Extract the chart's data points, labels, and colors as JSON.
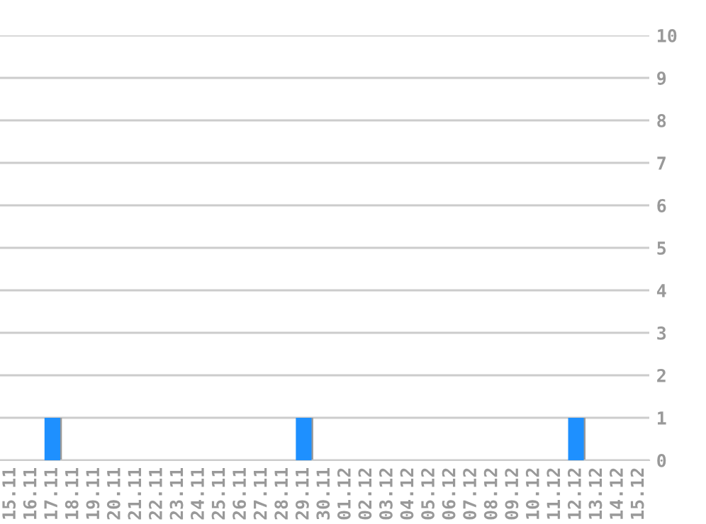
{
  "chart_data": {
    "type": "bar",
    "categories": [
      "15.11",
      "16.11",
      "17.11",
      "18.11",
      "19.11",
      "20.11",
      "21.11",
      "22.11",
      "23.11",
      "24.11",
      "25.11",
      "26.11",
      "27.11",
      "28.11",
      "29.11",
      "30.11",
      "01.12",
      "02.12",
      "03.12",
      "04.12",
      "05.12",
      "06.12",
      "07.12",
      "08.12",
      "09.12",
      "10.12",
      "11.12",
      "12.12",
      "13.12",
      "14.12",
      "15.12"
    ],
    "values": [
      0,
      0,
      1,
      0,
      0,
      0,
      0,
      0,
      0,
      0,
      0,
      0,
      0,
      0,
      1,
      0,
      0,
      0,
      0,
      0,
      0,
      0,
      0,
      0,
      0,
      0,
      0,
      1,
      0,
      0,
      0
    ],
    "color": "#1e90ff",
    "ylim": [
      0,
      10
    ],
    "yticks": [
      0,
      1,
      2,
      3,
      4,
      5,
      6,
      7,
      8,
      9,
      10
    ],
    "grid": "y",
    "legend": false
  }
}
